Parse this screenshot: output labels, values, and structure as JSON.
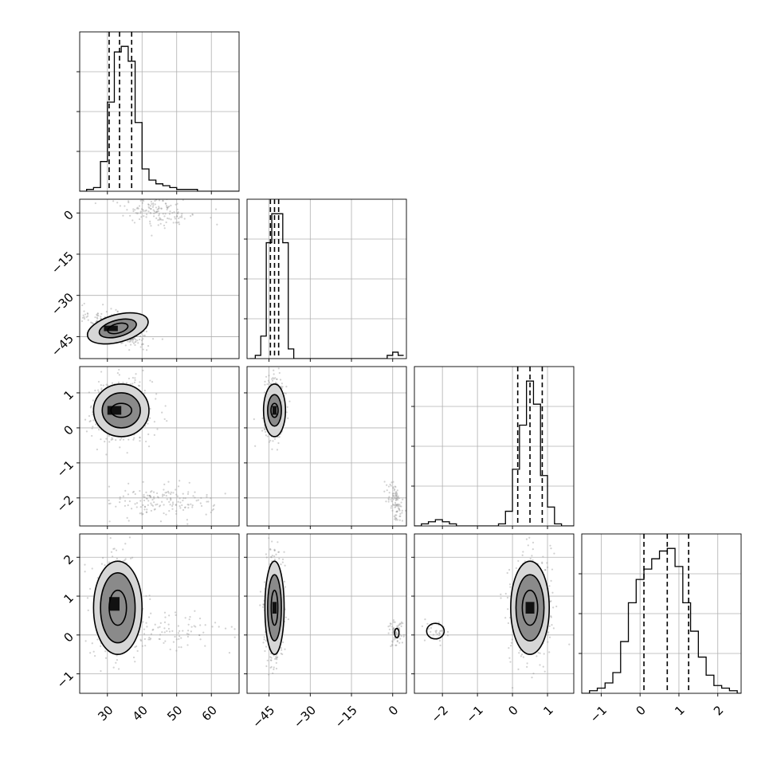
{
  "chart_data": {
    "type": "corner",
    "grid": true,
    "parameters": [
      {
        "index": 0,
        "range": [
          22,
          68
        ],
        "ticks": [
          30,
          40,
          50,
          60
        ],
        "tick_labels": [
          "30",
          "40",
          "50",
          "60"
        ]
      },
      {
        "index": 1,
        "range": [
          -53,
          5
        ],
        "ticks": [
          -45,
          -30,
          -15,
          0
        ],
        "tick_labels": [
          "−45",
          "−30",
          "−15",
          "0"
        ]
      },
      {
        "index": 2,
        "range": [
          -2.8,
          1.75
        ],
        "ticks": [
          -2,
          -1,
          0,
          1
        ],
        "tick_labels": [
          "−2",
          "−1",
          "0",
          "1"
        ]
      },
      {
        "index": 3,
        "range": [
          -1.5,
          2.6
        ],
        "ticks": [
          -1,
          0,
          1,
          2
        ],
        "tick_labels": [
          "−1",
          "0",
          "1",
          "2"
        ]
      }
    ],
    "histograms": [
      {
        "param": 0,
        "bin_edges": [
          22,
          24,
          26,
          28,
          30,
          32,
          34,
          36,
          38,
          40,
          42,
          44,
          46,
          48,
          50,
          52,
          54,
          56,
          58,
          60,
          62,
          64,
          66,
          68
        ],
        "counts": [
          0,
          1,
          2,
          16,
          48,
          75,
          78,
          70,
          37,
          12,
          6,
          4,
          3,
          2,
          1,
          1,
          1,
          0,
          0,
          0,
          0,
          0,
          0
        ],
        "quantiles": [
          30.5,
          33.5,
          37.0
        ]
      },
      {
        "param": 1,
        "bin_edges": [
          -52,
          -50,
          -48,
          -46,
          -44,
          -42,
          -40,
          -38,
          -36,
          -34,
          -32,
          -30,
          -28,
          -26,
          -24,
          -22,
          -20,
          -18,
          -16,
          -14,
          -12,
          -10,
          -8,
          -6,
          -4,
          -2,
          0,
          2,
          4
        ],
        "counts": [
          0,
          1,
          7,
          36,
          45,
          45,
          36,
          3,
          0,
          0,
          0,
          0,
          0,
          0,
          0,
          0,
          0,
          0,
          0,
          0,
          0,
          0,
          0,
          0,
          0,
          1,
          2,
          1
        ],
        "quantiles": [
          -44.5,
          -43.0,
          -41.5
        ]
      },
      {
        "param": 2,
        "bin_edges": [
          -2.8,
          -2.6,
          -2.4,
          -2.2,
          -2.0,
          -1.8,
          -1.6,
          -1.4,
          -1.2,
          -1.0,
          -0.8,
          -0.6,
          -0.4,
          -0.2,
          0.0,
          0.2,
          0.4,
          0.6,
          0.8,
          1.0,
          1.2,
          1.4,
          1.6,
          1.8
        ],
        "counts": [
          0,
          1,
          2,
          3,
          2,
          1,
          0,
          0,
          0,
          0,
          0,
          0,
          1,
          7,
          27,
          48,
          69,
          58,
          24,
          9,
          1,
          0,
          0
        ],
        "quantiles": [
          0.15,
          0.5,
          0.85
        ]
      },
      {
        "param": 3,
        "bin_edges": [
          -1.5,
          -1.3,
          -1.1,
          -0.9,
          -0.7,
          -0.5,
          -0.3,
          -0.1,
          0.1,
          0.3,
          0.5,
          0.7,
          0.9,
          1.1,
          1.3,
          1.5,
          1.7,
          1.9,
          2.1,
          2.3,
          2.5,
          2.6
        ],
        "counts": [
          0,
          1,
          2,
          4,
          8,
          20,
          35,
          44,
          48,
          52,
          55,
          56,
          49,
          35,
          24,
          14,
          7,
          3,
          2,
          1,
          0
        ],
        "quantiles": [
          0.1,
          0.7,
          1.25
        ]
      }
    ],
    "scatter_clusters": [
      {
        "x_param": 0,
        "y_param": 1,
        "clusters": [
          {
            "center": [
              33,
              -42
            ],
            "sd": [
              4,
              3
            ],
            "n": 420,
            "rho": -0.6
          },
          {
            "center": [
              44,
              1
            ],
            "sd": [
              6,
              3
            ],
            "n": 160,
            "rho": -0.3
          }
        ],
        "contours": [
          {
            "center": [
              33,
              -42
            ],
            "half_width": [
              9,
              5
            ],
            "rho": -0.6
          },
          {
            "center": [
              33,
              -42
            ],
            "half_width": [
              5.5,
              3
            ],
            "rho": -0.6
          },
          {
            "center": [
              33,
              -42
            ],
            "half_width": [
              3,
              1.7
            ],
            "rho": -0.6
          }
        ],
        "core_blocks": [
          [
            31,
            -42,
            4,
            2
          ]
        ]
      },
      {
        "x_param": 0,
        "y_param": 2,
        "clusters": [
          {
            "center": [
              34,
              0.5
            ],
            "sd": [
              4.5,
              0.45
            ],
            "n": 420,
            "rho": 0
          },
          {
            "center": [
              46,
              -2.1
            ],
            "sd": [
              7,
              0.25
            ],
            "n": 160,
            "rho": 0
          }
        ],
        "contours": [
          {
            "center": [
              34,
              0.5
            ],
            "half_width": [
              8,
              0.75
            ],
            "rho": 0
          },
          {
            "center": [
              34,
              0.5
            ],
            "half_width": [
              5.5,
              0.5
            ],
            "rho": 0
          },
          {
            "center": [
              34,
              0.5
            ],
            "half_width": [
              3,
              0.2
            ],
            "rho": 0
          }
        ],
        "core_blocks": [
          [
            32,
            0.5,
            4,
            0.25
          ]
        ]
      },
      {
        "x_param": 1,
        "y_param": 2,
        "clusters": [
          {
            "center": [
              -43,
              0.6
            ],
            "sd": [
              1.8,
              0.4
            ],
            "n": 380,
            "rho": 0
          },
          {
            "center": [
              1,
              -2.1
            ],
            "sd": [
              1.5,
              0.3
            ],
            "n": 100,
            "rho": -0.5
          }
        ],
        "contours": [
          {
            "center": [
              -43,
              0.5
            ],
            "half_width": [
              4,
              0.75
            ],
            "rho": 0
          },
          {
            "center": [
              -43,
              0.5
            ],
            "half_width": [
              2.5,
              0.45
            ],
            "rho": 0
          },
          {
            "center": [
              -43,
              0.5
            ],
            "half_width": [
              1.3,
              0.2
            ],
            "rho": 0
          }
        ],
        "core_blocks": [
          [
            -43,
            0.5,
            1.5,
            0.25
          ]
        ]
      },
      {
        "x_param": 0,
        "y_param": 3,
        "clusters": [
          {
            "center": [
              33,
              0.7
            ],
            "sd": [
              3.5,
              0.7
            ],
            "n": 460,
            "rho": 0
          },
          {
            "center": [
              48,
              0.1
            ],
            "sd": [
              8,
              0.25
            ],
            "n": 90,
            "rho": 0
          }
        ],
        "contours": [
          {
            "center": [
              33,
              0.7
            ],
            "half_width": [
              7,
              1.2
            ],
            "rho": 0
          },
          {
            "center": [
              33,
              0.7
            ],
            "half_width": [
              5,
              0.9
            ],
            "rho": 0
          },
          {
            "center": [
              33,
              0.7
            ],
            "half_width": [
              2.5,
              0.45
            ],
            "rho": 0
          }
        ],
        "core_blocks": [
          [
            32,
            0.8,
            3,
            0.35
          ]
        ]
      },
      {
        "x_param": 1,
        "y_param": 3,
        "clusters": [
          {
            "center": [
              -43,
              0.7
            ],
            "sd": [
              1.6,
              0.7
            ],
            "n": 460,
            "rho": 0
          },
          {
            "center": [
              1,
              0.1
            ],
            "sd": [
              1.2,
              0.2
            ],
            "n": 70,
            "rho": 0
          }
        ],
        "contours": [
          {
            "center": [
              -43,
              0.7
            ],
            "half_width": [
              3.5,
              1.2
            ],
            "rho": 0
          },
          {
            "center": [
              -43,
              0.7
            ],
            "half_width": [
              2.5,
              0.85
            ],
            "rho": 0
          },
          {
            "center": [
              -43,
              0.7
            ],
            "half_width": [
              1.2,
              0.45
            ],
            "rho": 0
          },
          {
            "center": [
              1.5,
              0.05
            ],
            "half_width": [
              0.8,
              0.12
            ],
            "rho": 0
          }
        ],
        "core_blocks": [
          [
            -43,
            0.7,
            1.5,
            0.3
          ]
        ]
      },
      {
        "x_param": 2,
        "y_param": 3,
        "clusters": [
          {
            "center": [
              0.5,
              0.7
            ],
            "sd": [
              0.3,
              0.7
            ],
            "n": 460,
            "rho": 0
          },
          {
            "center": [
              -2.2,
              0.1
            ],
            "sd": [
              0.15,
              0.15
            ],
            "n": 30,
            "rho": 0
          }
        ],
        "contours": [
          {
            "center": [
              0.5,
              0.7
            ],
            "half_width": [
              0.55,
              1.2
            ],
            "rho": 0
          },
          {
            "center": [
              0.5,
              0.7
            ],
            "half_width": [
              0.4,
              0.85
            ],
            "rho": 0
          },
          {
            "center": [
              0.5,
              0.7
            ],
            "half_width": [
              0.22,
              0.45
            ],
            "rho": 0
          },
          {
            "center": [
              -2.2,
              0.1
            ],
            "half_width": [
              0.25,
              0.2
            ],
            "rho": 0
          }
        ],
        "core_blocks": [
          [
            0.5,
            0.7,
            0.25,
            0.3
          ]
        ]
      }
    ]
  }
}
